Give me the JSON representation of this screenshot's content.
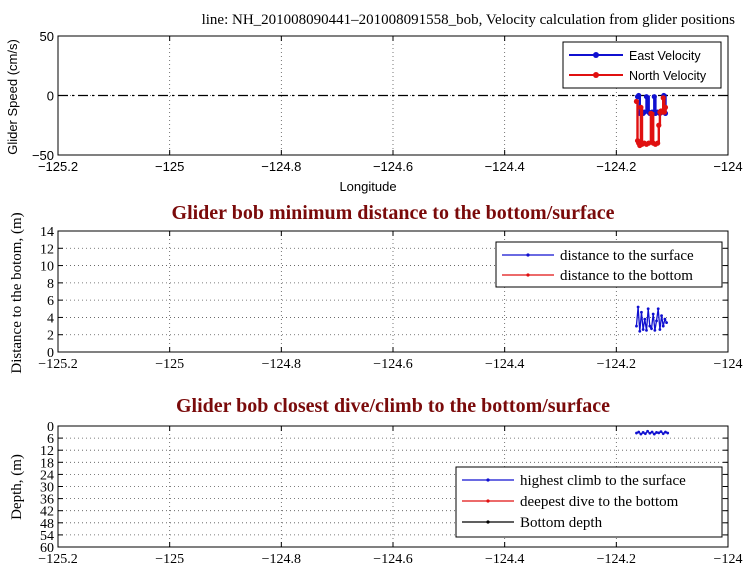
{
  "header": {
    "title": "line: NH_201008090441–201008091558_bob, Velocity calculation from glider positions"
  },
  "chart_data": [
    {
      "type": "line",
      "title": "",
      "xlabel": "Longitude",
      "ylabel": "Glider Speed (cm/s)",
      "xlim": [
        -125.2,
        -124.0
      ],
      "ylim": [
        -50,
        50
      ],
      "xticks": [
        "−125.2",
        "−125",
        "−124.8",
        "−124.6",
        "−124.4",
        "−124.2",
        "−124"
      ],
      "yticks": [
        "50",
        "0",
        "−50"
      ],
      "grid": true,
      "legend_position": "top-right",
      "reference_line": {
        "y": 0,
        "style": "dash-dot"
      },
      "series": [
        {
          "name": "East Velocity",
          "color": "#1010d0",
          "x": [
            -124.162,
            -124.16,
            -124.158,
            -124.155,
            -124.152,
            -124.15,
            -124.146,
            -124.142,
            -124.14,
            -124.136,
            -124.132,
            -124.13,
            -124.126,
            -124.122,
            -124.118,
            -124.115,
            -124.112
          ],
          "y": [
            -1,
            0,
            -15,
            -14,
            -15,
            -14,
            -1,
            -14,
            -15,
            -14,
            -1,
            -15,
            -14,
            -15,
            -14,
            0,
            -15
          ]
        },
        {
          "name": "North Velocity",
          "color": "#e01010",
          "x": [
            -124.164,
            -124.162,
            -124.16,
            -124.158,
            -124.156,
            -124.154,
            -124.15,
            -124.146,
            -124.142,
            -124.138,
            -124.134,
            -124.13,
            -124.126,
            -124.124,
            -124.122,
            -124.12,
            -124.118,
            -124.116,
            -124.114,
            -124.112
          ],
          "y": [
            -5,
            -38,
            -40,
            -42,
            -10,
            -41,
            -40,
            -41,
            -40,
            -15,
            -40,
            -41,
            -40,
            -25,
            -14,
            -13,
            -14,
            -2,
            -14,
            -10
          ]
        }
      ]
    },
    {
      "type": "line",
      "title": "Glider bob minimum distance to the bottom/surface",
      "xlabel": "",
      "ylabel": "Distance to the botom, (m)",
      "xlim": [
        -125.2,
        -124.0
      ],
      "ylim": [
        0,
        14
      ],
      "xticks": [
        "−125.2",
        "−125",
        "−124.8",
        "−124.6",
        "−124.4",
        "−124.2",
        "−124"
      ],
      "yticks": [
        "0",
        "2",
        "4",
        "6",
        "8",
        "10",
        "12",
        "14"
      ],
      "grid": true,
      "legend_position": "top-right",
      "series": [
        {
          "name": "distance to the surface",
          "color": "#1010d0",
          "x": [
            -124.164,
            -124.161,
            -124.158,
            -124.155,
            -124.152,
            -124.149,
            -124.146,
            -124.143,
            -124.14,
            -124.137,
            -124.134,
            -124.131,
            -124.128,
            -124.125,
            -124.122,
            -124.119,
            -124.116,
            -124.113,
            -124.11
          ],
          "y": [
            3.0,
            5.2,
            2.4,
            4.6,
            2.6,
            3.8,
            2.5,
            5.0,
            3.0,
            2.7,
            4.4,
            2.5,
            3.6,
            5.0,
            2.6,
            4.2,
            3.0,
            3.8,
            3.4
          ]
        },
        {
          "name": "distance to the bottom",
          "color": "#e01010",
          "x": [],
          "y": []
        }
      ]
    },
    {
      "type": "line",
      "title": "Glider bob closest dive/climb to the bottom/surface",
      "xlabel": "",
      "ylabel": "Depth, (m)",
      "xlim": [
        -125.2,
        -124.0
      ],
      "ylim": [
        0,
        60
      ],
      "y_reversed": true,
      "xticks": [
        "−125.2",
        "−125",
        "−124.8",
        "−124.6",
        "−124.4",
        "−124.2",
        "−124"
      ],
      "yticks": [
        "0",
        "6",
        "12",
        "18",
        "24",
        "30",
        "36",
        "42",
        "48",
        "54",
        "60"
      ],
      "grid": true,
      "legend_position": "bottom-right",
      "series": [
        {
          "name": "highest climb to the surface",
          "color": "#1010d0",
          "x": [
            -124.164,
            -124.16,
            -124.156,
            -124.152,
            -124.148,
            -124.144,
            -124.14,
            -124.136,
            -124.132,
            -124.128,
            -124.124,
            -124.12,
            -124.116,
            -124.112,
            -124.108
          ],
          "y": [
            3.5,
            3.0,
            4.0,
            3.2,
            3.8,
            2.6,
            3.6,
            3.0,
            4.0,
            3.2,
            3.4,
            2.8,
            3.8,
            3.0,
            3.5
          ]
        },
        {
          "name": "deepest dive to the bottom",
          "color": "#e01010",
          "x": [],
          "y": []
        },
        {
          "name": "Bottom depth",
          "color": "#000000",
          "x": [],
          "y": []
        }
      ]
    }
  ]
}
